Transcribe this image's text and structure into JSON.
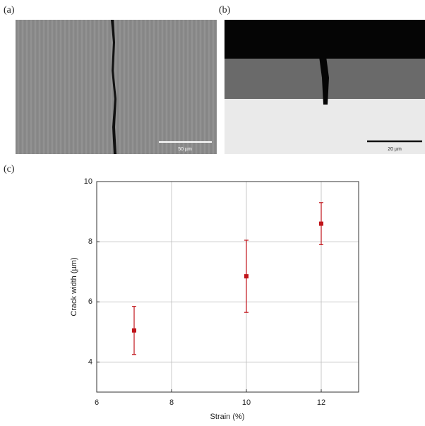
{
  "panels": {
    "a": {
      "label": "(a)",
      "scale_bar": "50 µm"
    },
    "b": {
      "label": "(b)",
      "scale_bar": "20 µm"
    },
    "c": {
      "label": "(c)"
    }
  },
  "chart_data": {
    "type": "scatter",
    "x_label": "Strain (%)",
    "y_label": "Crack width (µm)",
    "x": [
      7,
      10,
      12
    ],
    "values": [
      5.05,
      6.85,
      8.6
    ],
    "errors": [
      0.8,
      1.2,
      0.7
    ],
    "color": "#c0141a",
    "xlim": [
      6,
      13
    ],
    "xticks": [
      6,
      8,
      10,
      12
    ],
    "ylim": [
      3,
      10
    ],
    "yticks": [
      4,
      6,
      8,
      10
    ],
    "grid": true
  }
}
